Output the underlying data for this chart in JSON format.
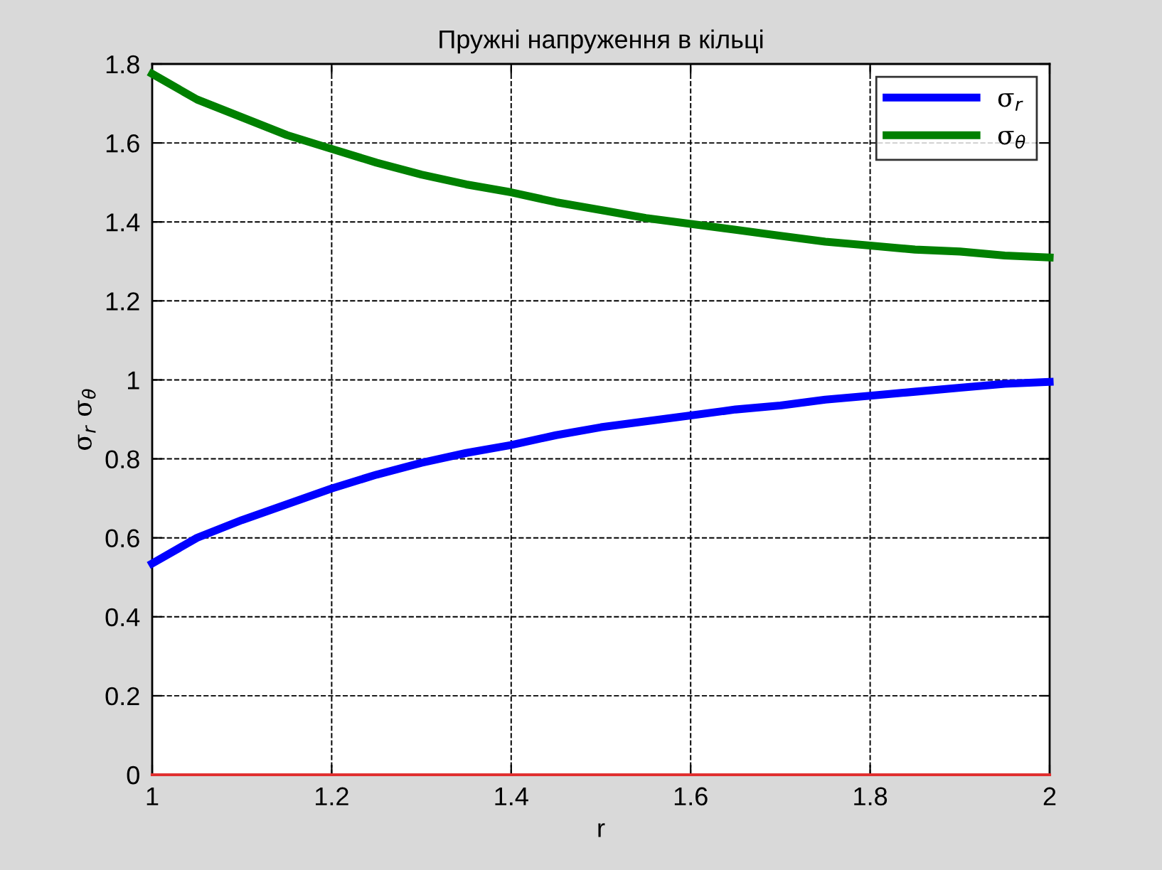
{
  "chart_data": {
    "type": "line",
    "title": "Пружні напруження в кільці",
    "xlabel": "r",
    "ylabel": "σ$_{r}$ σ$_{θ}$",
    "x": [
      1,
      1.05,
      1.1,
      1.15,
      1.2,
      1.25,
      1.3,
      1.35,
      1.4,
      1.45,
      1.5,
      1.55,
      1.6,
      1.65,
      1.7,
      1.75,
      1.8,
      1.85,
      1.9,
      1.95,
      2
    ],
    "series": [
      {
        "name": "σ$_{r}$",
        "color": "#0000ff",
        "values": [
          0.535,
          0.6,
          0.645,
          0.685,
          0.725,
          0.76,
          0.79,
          0.815,
          0.835,
          0.86,
          0.88,
          0.895,
          0.91,
          0.925,
          0.935,
          0.95,
          0.96,
          0.97,
          0.98,
          0.99,
          0.995
        ]
      },
      {
        "name": "σ$_{θ}$",
        "color": "#008000",
        "values": [
          1.775,
          1.71,
          1.665,
          1.62,
          1.585,
          1.55,
          1.52,
          1.495,
          1.475,
          1.45,
          1.43,
          1.41,
          1.395,
          1.38,
          1.365,
          1.35,
          1.34,
          1.33,
          1.325,
          1.315,
          1.31
        ]
      },
      {
        "color": "#e03030",
        "values": [
          0,
          0,
          0,
          0,
          0,
          0,
          0,
          0,
          0,
          0,
          0,
          0,
          0,
          0,
          0,
          0,
          0,
          0,
          0,
          0,
          0
        ]
      }
    ],
    "xlim": [
      1,
      2
    ],
    "xticks": [
      1,
      1.2,
      1.4,
      1.6,
      1.8,
      2
    ],
    "ylim": [
      0,
      1.8
    ],
    "yticks": [
      0,
      0.2,
      0.4,
      0.6,
      0.8,
      1,
      1.2,
      1.4,
      1.6,
      1.8
    ],
    "grid": true,
    "legend": "top right",
    "line_style": "solid",
    "marker": "none"
  }
}
